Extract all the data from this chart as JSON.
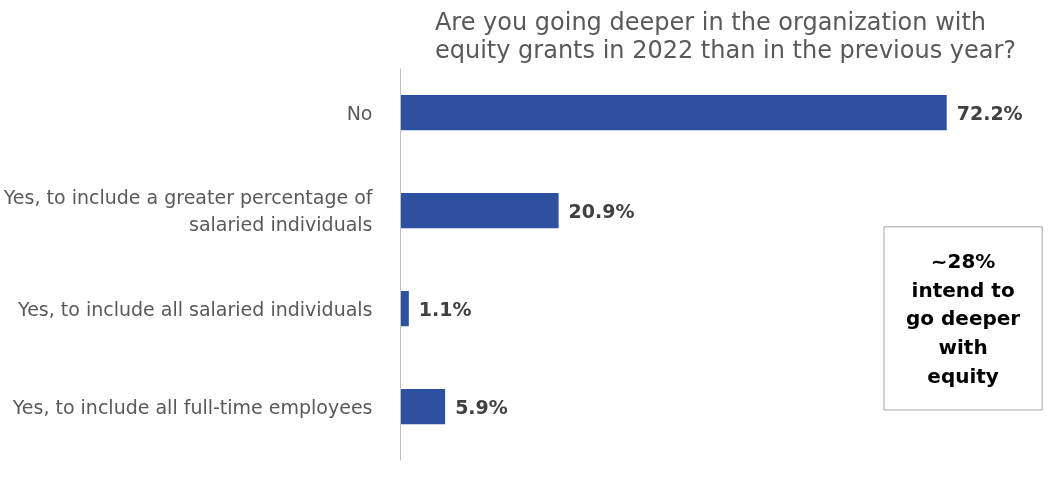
{
  "chart_data": {
    "type": "bar",
    "orientation": "horizontal",
    "title": "Are you going deeper in the organization with equity grants in 2022 than in the previous year?",
    "categories": [
      "No",
      "Yes, to include a greater percentage of salaried individuals",
      "Yes, to include all salaried individuals",
      "Yes, to include all full-time employees"
    ],
    "values": [
      72.2,
      20.9,
      1.1,
      5.9
    ],
    "value_labels": [
      "72.2%",
      "20.9%",
      "1.1%",
      "5.9%"
    ],
    "color": "#2e50a0",
    "annotations": [
      "~28% intend to go deeper with equity"
    ],
    "grid": false
  }
}
